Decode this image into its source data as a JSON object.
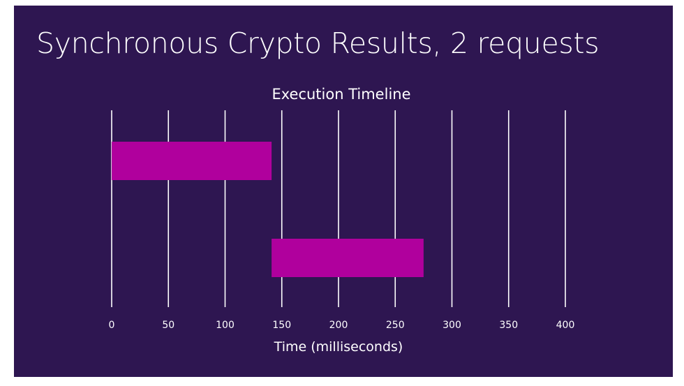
{
  "slide": {
    "title": "Synchronous Crypto Results, 2 requests"
  },
  "colors": {
    "background": "#2e1651",
    "bar": "#b0009d",
    "text": "#ffffff",
    "gridline": "#ffffff"
  },
  "chart_data": {
    "type": "bar",
    "orientation": "horizontal",
    "subtype": "gantt",
    "title": "Execution Timeline",
    "xlabel": "Time (milliseconds)",
    "ylabel": "",
    "xlim": [
      0,
      400
    ],
    "xticks": [
      0,
      50,
      100,
      150,
      200,
      250,
      300,
      350,
      400
    ],
    "xtick_labels": [
      "0",
      "50",
      "100",
      "150",
      "200",
      "250",
      "300",
      "350",
      "400"
    ],
    "grid": "vertical",
    "legend": "none",
    "bars": [
      {
        "start": 0,
        "end": 141
      },
      {
        "start": 141,
        "end": 275
      }
    ]
  }
}
